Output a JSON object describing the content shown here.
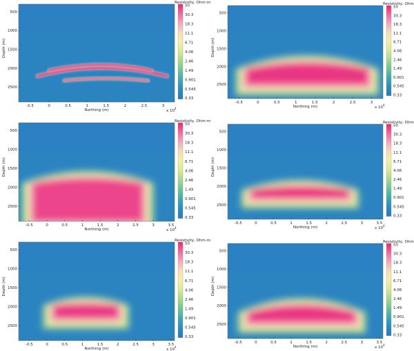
{
  "colorbar": {
    "title": "Resistivity, Ohm-m",
    "ticks": [
      "50",
      "30.3",
      "18.3",
      "11.1",
      "6.71",
      "4.06",
      "2.46",
      "1.49",
      "0.901",
      "0.545",
      "0.33"
    ],
    "colors": [
      "#e9287b",
      "#f06aa0",
      "#f4a8bf",
      "#f6ddb8",
      "#f4f0a6",
      "#d8e896",
      "#a6d890",
      "#6ec49a",
      "#3fa9ad",
      "#2c8cbd",
      "#2a78c6"
    ]
  },
  "chart_data": [
    {
      "type": "heatmap",
      "xlabel": "Northing (m)",
      "ylabel": "Depth (m)",
      "x_multiplier": "x 10",
      "x_ticks": [
        -0.5,
        0,
        0.5,
        1,
        1.5,
        2,
        2.5,
        3
      ],
      "x_tick_labels": [
        "-0.5",
        "0",
        "0.5",
        "1",
        "1.5",
        "2",
        "2.5",
        "3"
      ],
      "xlim": [
        -0.8,
        3.3
      ],
      "y_ticks": [
        500,
        1000,
        1500,
        2000,
        2500
      ],
      "y_tick_labels": [
        "500",
        "1000",
        "1500",
        "2000",
        "2500"
      ],
      "ylim": [
        300,
        2900
      ],
      "colorscale": "log",
      "clim": [
        0.33,
        50
      ],
      "background_value": 0.45,
      "features": [
        {
          "kind": "thin-layer",
          "x_range": [
            -0.3,
            3.1
          ],
          "depth_center": 2210,
          "depth_thickness": 60,
          "arch": 220,
          "value": 50
        },
        {
          "kind": "thin-layer",
          "x_range": [
            0.0,
            2.7
          ],
          "depth_center": 2060,
          "depth_thickness": 50,
          "arch": 150,
          "value": 50
        },
        {
          "kind": "thin-layer",
          "x_range": [
            0.4,
            2.6
          ],
          "depth_center": 2330,
          "depth_thickness": 40,
          "arch": 60,
          "value": 40
        }
      ]
    },
    {
      "type": "heatmap",
      "xlabel": "Northing (m)",
      "ylabel": "Depth (m)",
      "x_multiplier": "x 10",
      "x_ticks": [
        -0.5,
        0,
        0.5,
        1,
        1.5,
        2,
        2.5,
        3
      ],
      "x_tick_labels": [
        "-0.5",
        "0",
        "0.5",
        "1",
        "1.5",
        "2",
        "2.5",
        "3"
      ],
      "xlim": [
        -0.8,
        3.3
      ],
      "y_ticks": [
        500,
        1000,
        1500,
        2000,
        2500
      ],
      "y_tick_labels": [
        "500",
        "1000",
        "1500",
        "2000",
        "2500"
      ],
      "ylim": [
        300,
        2900
      ],
      "colorscale": "log",
      "clim": [
        0.33,
        50
      ],
      "background_value": 0.45,
      "features": [
        {
          "kind": "blob",
          "x_range": [
            -0.3,
            2.9
          ],
          "depth_range": [
            1950,
            2500
          ],
          "arch": 200,
          "value": 45
        }
      ]
    },
    {
      "type": "heatmap",
      "xlabel": "Northing (m)",
      "ylabel": "Depth (m)",
      "x_multiplier": "x 10",
      "x_ticks": [
        -0.5,
        0,
        0.5,
        1,
        1.5,
        2,
        2.5,
        3,
        3.5
      ],
      "x_tick_labels": [
        "-0.5",
        "0",
        "0.5",
        "1",
        "1.5",
        "2",
        "2.5",
        "3",
        "3.5"
      ],
      "xlim": [
        -0.8,
        3.6
      ],
      "y_ticks": [
        500,
        1000,
        1500,
        2000,
        2500
      ],
      "y_tick_labels": [
        "500",
        "1000",
        "1500",
        "2000",
        "2500"
      ],
      "ylim": [
        300,
        2900
      ],
      "colorscale": "log",
      "clim": [
        0.33,
        50
      ],
      "background_value": 0.45,
      "features": [
        {
          "kind": "blob",
          "x_range": [
            -0.4,
            2.7
          ],
          "depth_range": [
            1800,
            2900
          ],
          "arch": 150,
          "value": 40
        }
      ]
    },
    {
      "type": "heatmap",
      "xlabel": "Northing (m)",
      "ylabel": "Depth (m)",
      "x_multiplier": "x 10",
      "x_ticks": [
        -0.5,
        0,
        0.5,
        1,
        1.5,
        2,
        2.5,
        3,
        3.5
      ],
      "x_tick_labels": [
        "-0.5",
        "0",
        "0.5",
        "1",
        "1.5",
        "2",
        "2.5",
        "3",
        "3.5"
      ],
      "xlim": [
        -0.8,
        3.6
      ],
      "y_ticks": [
        500,
        1000,
        1500,
        2000,
        2500
      ],
      "y_tick_labels": [
        "500",
        "1000",
        "1500",
        "2000",
        "2500"
      ],
      "ylim": [
        300,
        2900
      ],
      "colorscale": "log",
      "clim": [
        0.33,
        50
      ],
      "background_value": 0.45,
      "features": [
        {
          "kind": "blob",
          "x_range": [
            -0.1,
            2.6
          ],
          "depth_range": [
            2050,
            2300
          ],
          "arch": 80,
          "value": 50
        }
      ]
    },
    {
      "type": "heatmap",
      "xlabel": "Northing (m)",
      "ylabel": "Depth (m)",
      "x_multiplier": "x 10",
      "x_ticks": [
        -0.5,
        0,
        0.5,
        1,
        1.5,
        2,
        2.5,
        3,
        3.5
      ],
      "x_tick_labels": [
        "-0.5",
        "0",
        "0.5",
        "1",
        "1.5",
        "2",
        "2.5",
        "3",
        "3.5"
      ],
      "xlim": [
        -0.8,
        3.6
      ],
      "y_ticks": [
        500,
        1000,
        1500,
        2000,
        2500
      ],
      "y_tick_labels": [
        "500",
        "1000",
        "1500",
        "2000",
        "2500"
      ],
      "ylim": [
        300,
        2900
      ],
      "colorscale": "log",
      "clim": [
        0.33,
        50
      ],
      "background_value": 0.45,
      "features": [
        {
          "kind": "blob",
          "x_range": [
            0.2,
            2.0
          ],
          "depth_range": [
            1950,
            2300
          ],
          "arch": 30,
          "value": 45
        }
      ]
    },
    {
      "type": "heatmap",
      "xlabel": "Northing (m)",
      "ylabel": "Depth (m)",
      "x_multiplier": "x 10",
      "x_ticks": [
        -0.5,
        0,
        0.5,
        1,
        1.5,
        2,
        2.5,
        3,
        3.5
      ],
      "x_tick_labels": [
        "-0.5",
        "0",
        "0.5",
        "1",
        "1.5",
        "2",
        "2.5",
        "3",
        "3.5"
      ],
      "xlim": [
        -0.8,
        3.6
      ],
      "y_ticks": [
        500,
        1000,
        1500,
        2000,
        2500
      ],
      "y_tick_labels": [
        "500",
        "1000",
        "1500",
        "2000",
        "2500"
      ],
      "ylim": [
        300,
        2900
      ],
      "colorscale": "log",
      "clim": [
        0.33,
        50
      ],
      "background_value": 0.45,
      "features": [
        {
          "kind": "blob",
          "x_range": [
            -0.2,
            2.8
          ],
          "depth_range": [
            2050,
            2450
          ],
          "arch": 220,
          "value": 45
        }
      ]
    }
  ]
}
